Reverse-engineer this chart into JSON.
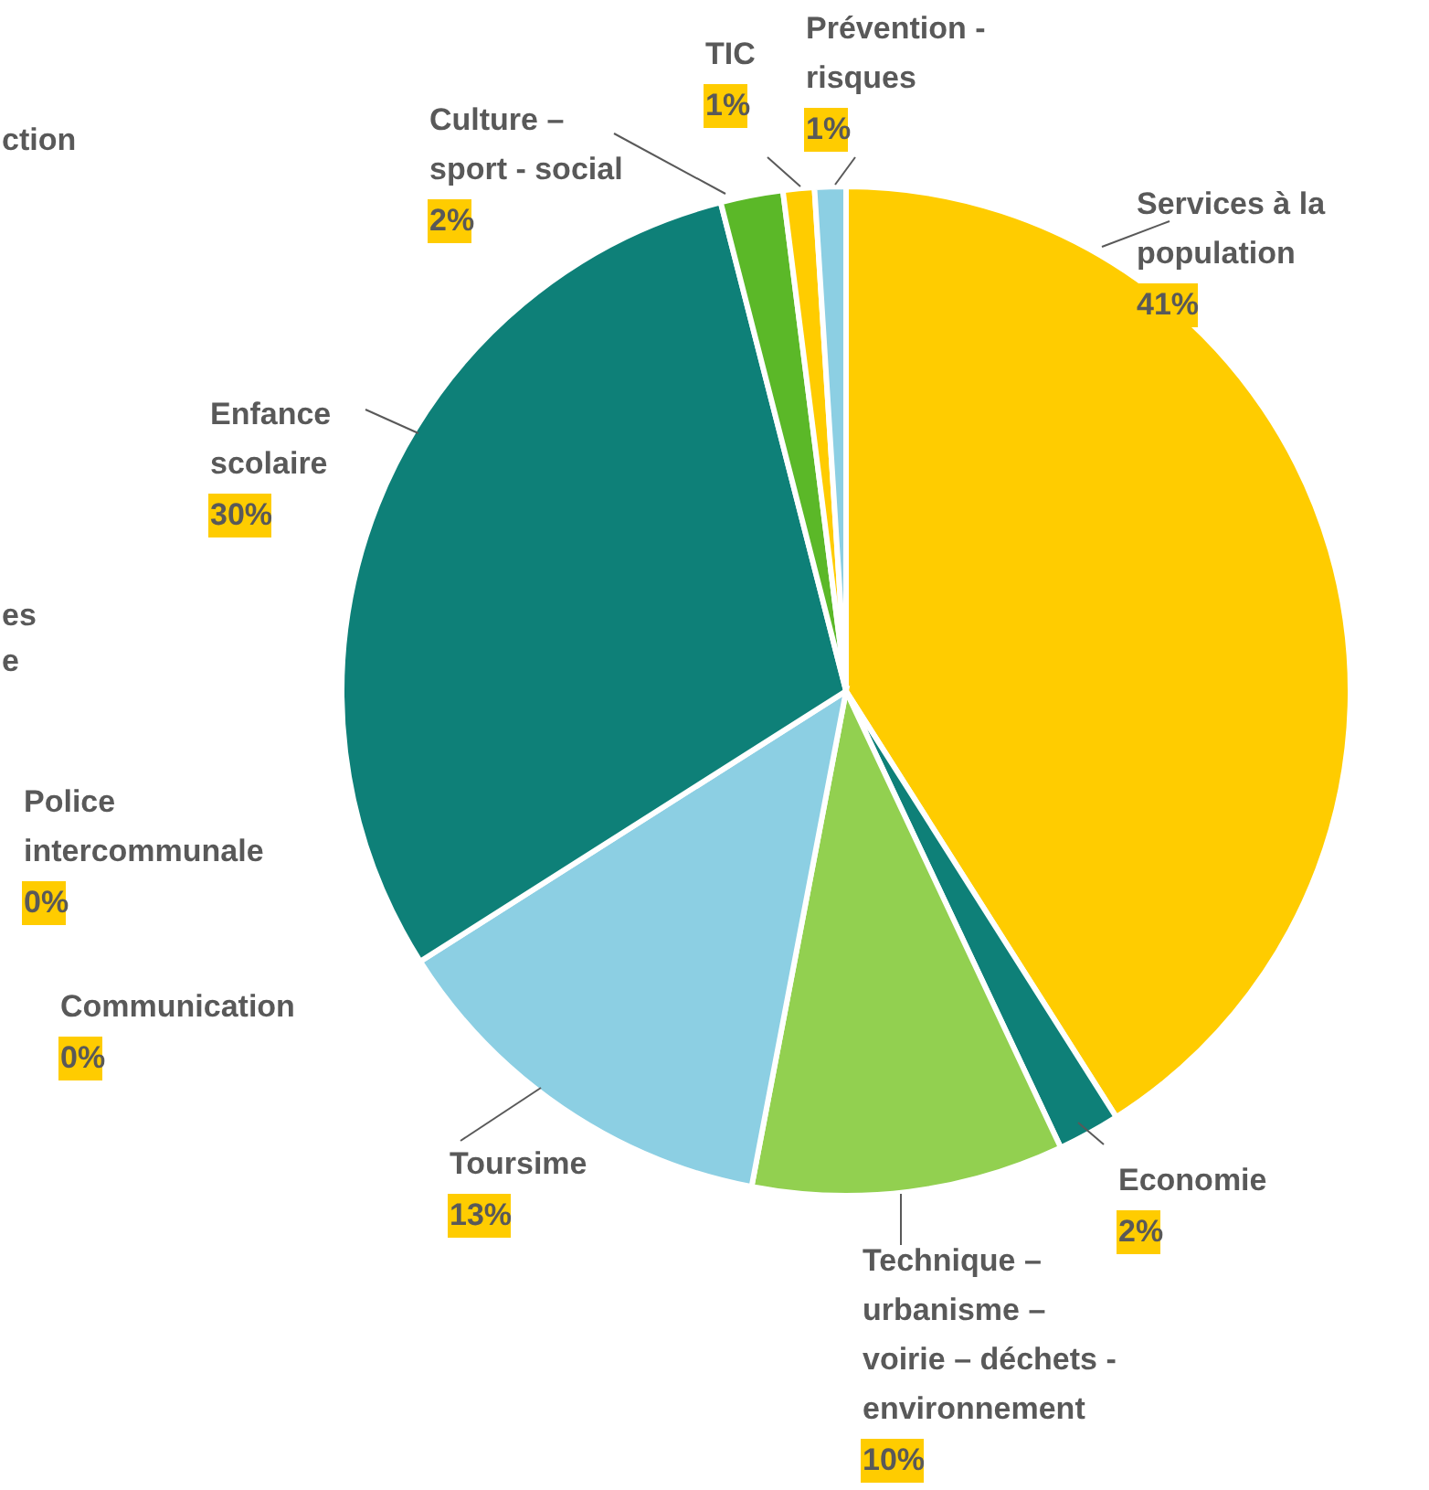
{
  "chart_data": {
    "type": "pie",
    "categories": [
      "Services à la population",
      "Economie",
      "Technique – urbanisme – voirie – déchets - environnement",
      "Toursime",
      "Police intercommunale",
      "Communication",
      "Enfance scolaire",
      "Culture – sport - social",
      "TIC",
      "Prévention - risques"
    ],
    "values": [
      41,
      2,
      10,
      13,
      0,
      0,
      30,
      2,
      1,
      1
    ],
    "value_labels": [
      "41%",
      "2%",
      "10%",
      "13%",
      "0%",
      "0%",
      "30%",
      "2%",
      "1%",
      "1%"
    ],
    "colors": [
      "#ffcc00",
      "#0e8078",
      "#92d050",
      "#8ccfe3",
      "#ffcc00",
      "#92d050",
      "#0e8078",
      "#5bb828",
      "#ffcc00",
      "#8ccfe3"
    ],
    "annotations": [
      "ction",
      "es",
      "e"
    ]
  }
}
